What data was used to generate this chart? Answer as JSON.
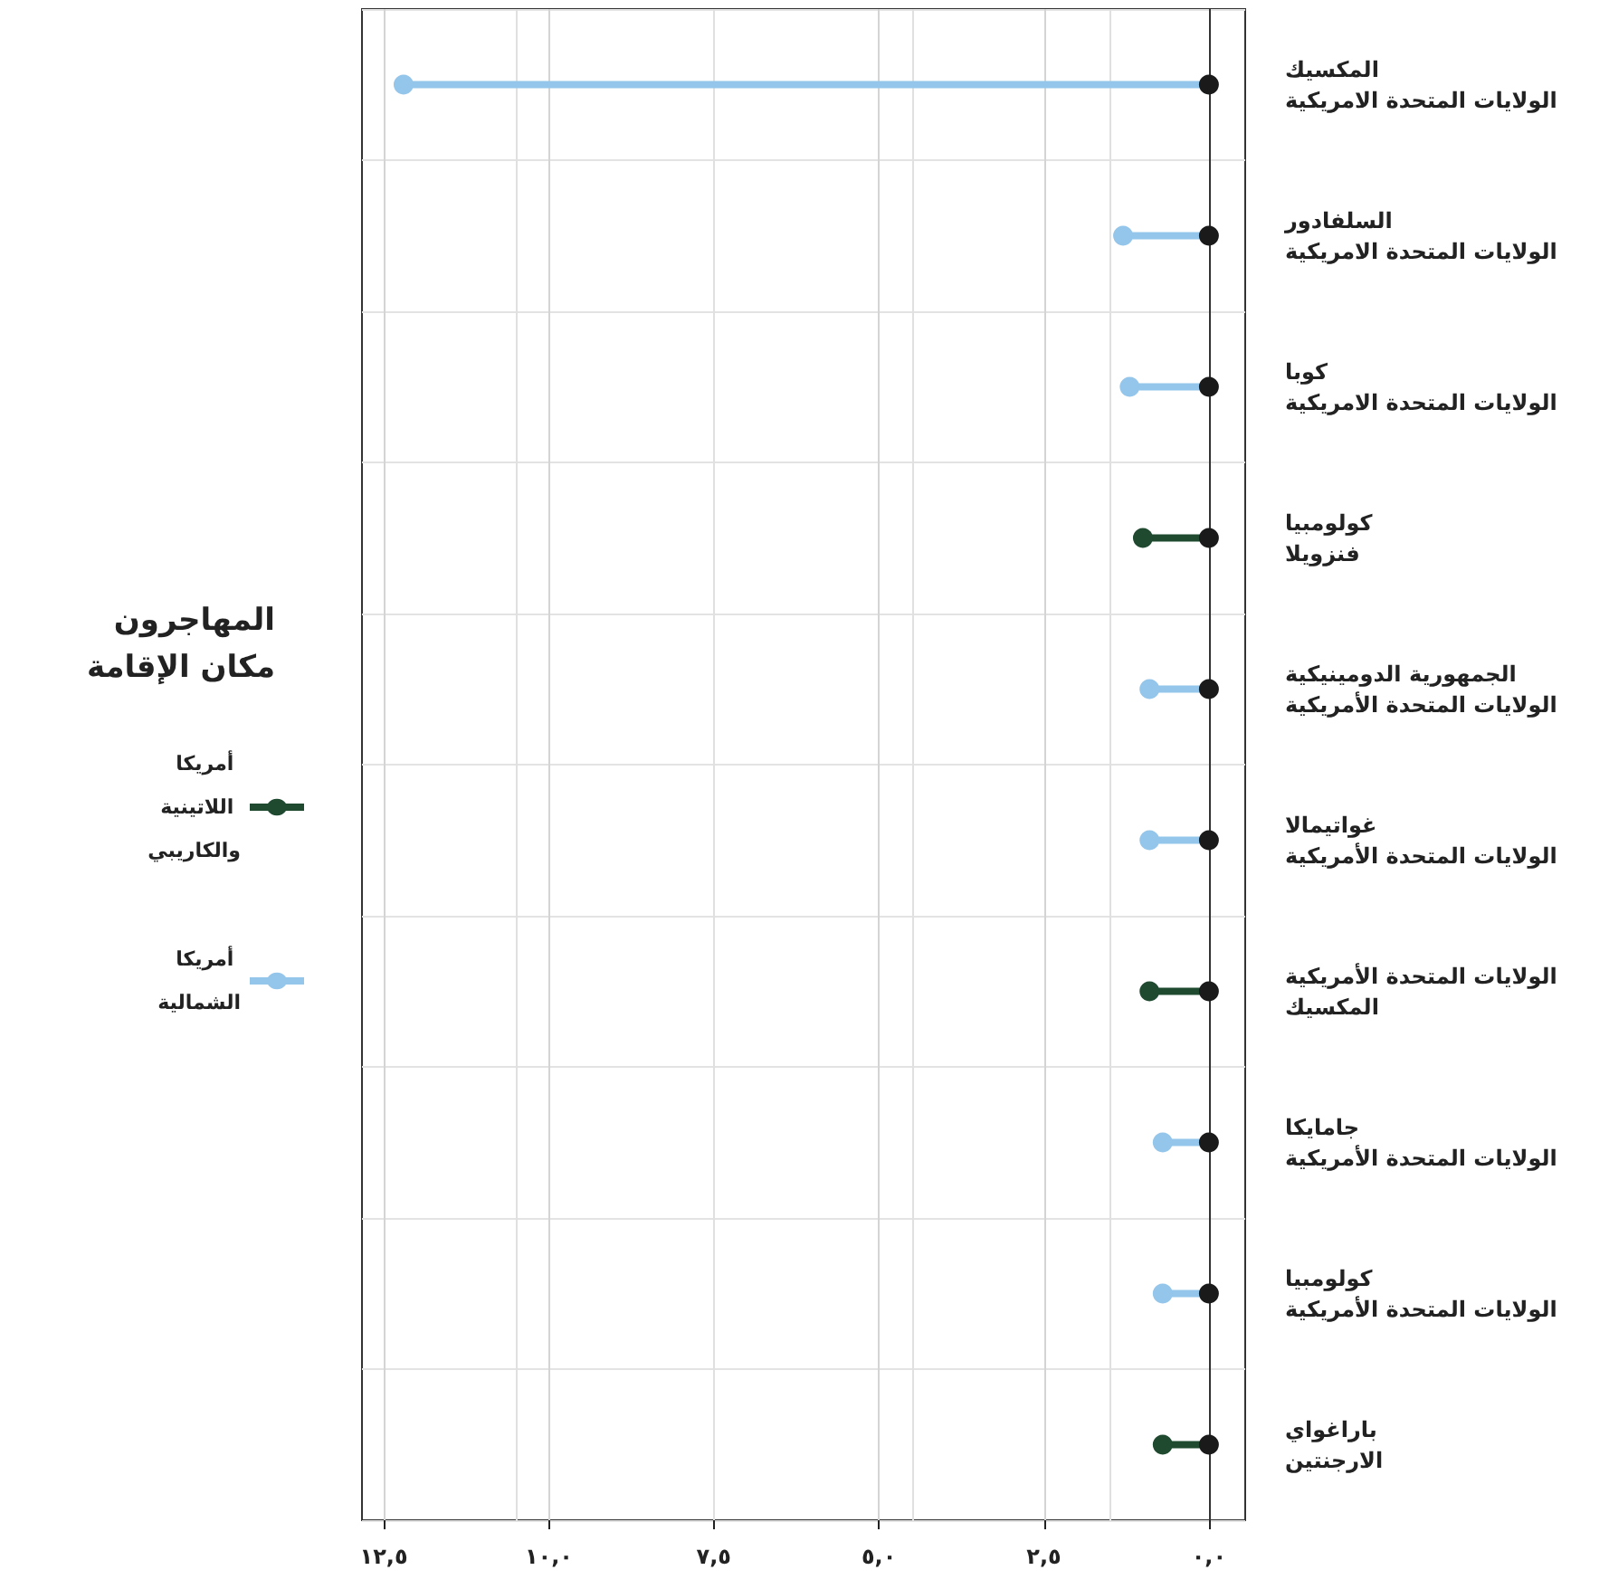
{
  "chart_data": {
    "type": "lollipop",
    "orientation": "horizontal",
    "legend_title": "المهاجرون\nمكان الإقامة",
    "categories": [
      "المكسيك\nالولايات المتحدة الامريكية",
      "السلفادور\nالولايات المتحدة الامريكية",
      "كوبا\nالولايات المتحدة الامريكية",
      "كولومبيا\nفنزويلا",
      "الجمهورية الدومينيكية\nالولايات المتحدة الأمريكية",
      "غواتيمالا\nالولايات المتحدة الأمريكية",
      "الولايات المتحدة الأمريكية\nالمكسيك",
      "جامايكا\nالولايات المتحدة الأمريكية",
      "كولومبيا\nالولايات المتحدة الأمريكية",
      "باراغواي\nالارجنتين"
    ],
    "series": [
      {
        "name": "أمريكا اللاتينية والكاريبي",
        "color": "#1f4a30",
        "values": [
          null,
          null,
          null,
          1.0,
          null,
          null,
          0.9,
          null,
          null,
          0.7
        ]
      },
      {
        "name": "أمريكا الشمالية",
        "color": "#94c5ea",
        "values": [
          12.2,
          1.3,
          1.2,
          null,
          0.9,
          0.9,
          null,
          0.7,
          0.7,
          null
        ]
      },
      {
        "type": "scatter",
        "color": "#1a1a1a",
        "values": [
          0,
          0,
          0,
          0,
          0,
          0,
          0,
          0,
          0,
          0
        ]
      }
    ],
    "xlim": [
      12.83,
      -0.55
    ],
    "xticks": [
      {
        "value": 12.5,
        "label": "١٢,٥"
      },
      {
        "value": 10,
        "label": "١٠,٠"
      },
      {
        "value": 7.5,
        "label": "٧,٥"
      },
      {
        "value": 5,
        "label": "٥,٠"
      },
      {
        "value": 2.5,
        "label": "٢,٥"
      },
      {
        "value": 0,
        "label": "٠,٠"
      }
    ],
    "grid": true,
    "legend": "left",
    "marker": "circle"
  }
}
